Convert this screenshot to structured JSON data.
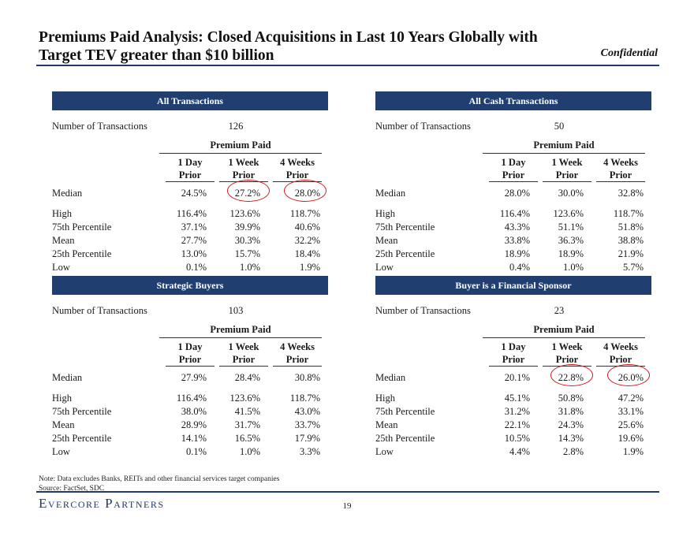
{
  "title_line1": "Premiums Paid Analysis: Closed Acquisitions in Last 10 Years Globally with",
  "title_line2": "Target TEV greater than $10 billion",
  "confidential": "Confidential",
  "common": {
    "num_label": "Number of Transactions",
    "premium_paid": "Premium Paid",
    "cols": [
      {
        "l1": "1 Day",
        "l2": "Prior"
      },
      {
        "l1": "1 Week",
        "l2": "Prior"
      },
      {
        "l1": "4 Weeks",
        "l2": "Prior"
      }
    ]
  },
  "panels": [
    {
      "title": "All Transactions",
      "num": "126",
      "rows": [
        {
          "label": "Median",
          "values": [
            "24.5%",
            "27.2%",
            "28.0%"
          ]
        },
        {
          "label": "High",
          "values": [
            "116.4%",
            "123.6%",
            "118.7%"
          ]
        },
        {
          "label": "75th Percentile",
          "values": [
            "37.1%",
            "39.9%",
            "40.6%"
          ]
        },
        {
          "label": "Mean",
          "values": [
            "27.7%",
            "30.3%",
            "32.2%"
          ]
        },
        {
          "label": "25th Percentile",
          "values": [
            "13.0%",
            "15.7%",
            "18.4%"
          ]
        },
        {
          "label": "Low",
          "values": [
            "0.1%",
            "1.0%",
            "1.9%"
          ]
        }
      ]
    },
    {
      "title": "All Cash Transactions",
      "num": "50",
      "rows": [
        {
          "label": "Median",
          "values": [
            "28.0%",
            "30.0%",
            "32.8%"
          ]
        },
        {
          "label": "High",
          "values": [
            "116.4%",
            "123.6%",
            "118.7%"
          ]
        },
        {
          "label": "75th Percentile",
          "values": [
            "43.3%",
            "51.1%",
            "51.8%"
          ]
        },
        {
          "label": "Mean",
          "values": [
            "33.8%",
            "36.3%",
            "38.8%"
          ]
        },
        {
          "label": "25th Percentile",
          "values": [
            "18.9%",
            "18.9%",
            "21.9%"
          ]
        },
        {
          "label": "Low",
          "values": [
            "0.4%",
            "1.0%",
            "5.7%"
          ]
        }
      ]
    },
    {
      "title": "Strategic Buyers",
      "num": "103",
      "rows": [
        {
          "label": "Median",
          "values": [
            "27.9%",
            "28.4%",
            "30.8%"
          ]
        },
        {
          "label": "High",
          "values": [
            "116.4%",
            "123.6%",
            "118.7%"
          ]
        },
        {
          "label": "75th Percentile",
          "values": [
            "38.0%",
            "41.5%",
            "43.0%"
          ]
        },
        {
          "label": "Mean",
          "values": [
            "28.9%",
            "31.7%",
            "33.7%"
          ]
        },
        {
          "label": "25th Percentile",
          "values": [
            "14.1%",
            "16.5%",
            "17.9%"
          ]
        },
        {
          "label": "Low",
          "values": [
            "0.1%",
            "1.0%",
            "3.3%"
          ]
        }
      ]
    },
    {
      "title": "Buyer is a Financial Sponsor",
      "num": "23",
      "rows": [
        {
          "label": "Median",
          "values": [
            "20.1%",
            "22.8%",
            "26.0%"
          ]
        },
        {
          "label": "High",
          "values": [
            "45.1%",
            "50.8%",
            "47.2%"
          ]
        },
        {
          "label": "75th Percentile",
          "values": [
            "31.2%",
            "31.8%",
            "33.1%"
          ]
        },
        {
          "label": "Mean",
          "values": [
            "22.1%",
            "24.3%",
            "25.6%"
          ]
        },
        {
          "label": "25th Percentile",
          "values": [
            "10.5%",
            "14.3%",
            "19.6%"
          ]
        },
        {
          "label": "Low",
          "values": [
            "4.4%",
            "2.8%",
            "1.9%"
          ]
        }
      ]
    }
  ],
  "note_line1": "Note: Data excludes Banks, REITs and other financial services target companies",
  "note_line2": "Source:  FactSet, SDC",
  "logo": "Evercore Partners",
  "page_number": "19"
}
